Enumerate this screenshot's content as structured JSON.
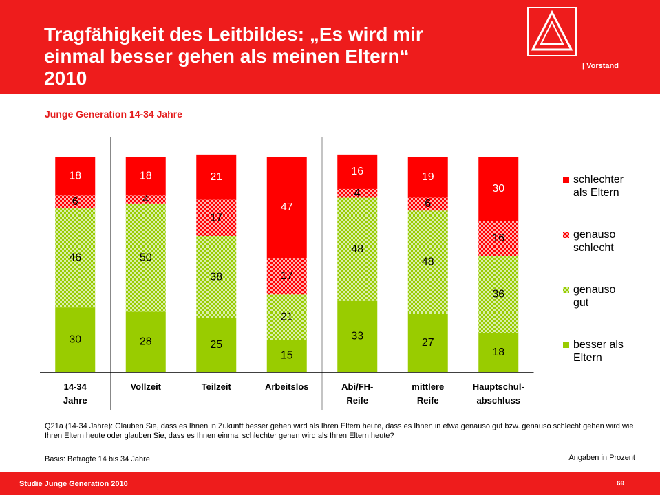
{
  "header": {
    "title": "Tragfähigkeit des Leitbildes: „Es wird mir\neinmal besser gehen als meinen Eltern“\n2010",
    "org": "| Vorstand"
  },
  "chart_data": {
    "type": "stacked_bar",
    "subtitle": "Junge Generation 14-34 Jahre",
    "categories": [
      "14-34\nJahre",
      "Vollzeit",
      "Teilzeit",
      "Arbeitslos",
      "Abi/FH-\nReife",
      "mittlere\nReife",
      "Hauptschul-\nabschluss"
    ],
    "series": [
      {
        "name": "besser als\nEltern",
        "color": "#99cc00",
        "pattern": "solid",
        "label_color": "#000000",
        "values": [
          30,
          28,
          25,
          15,
          33,
          27,
          18
        ]
      },
      {
        "name": "genauso\ngut",
        "color": "#99cc00",
        "pattern": "checker",
        "label_color": "#000000",
        "values": [
          46,
          50,
          38,
          21,
          48,
          48,
          36
        ]
      },
      {
        "name": "genauso\nschlecht",
        "color": "#ff0000",
        "pattern": "checker",
        "label_color": "#000000",
        "values": [
          6,
          4,
          17,
          17,
          4,
          6,
          16
        ]
      },
      {
        "name": "schlechter\nals Eltern",
        "color": "#ff0000",
        "pattern": "solid",
        "label_color": "#ffffff",
        "values": [
          18,
          18,
          21,
          47,
          16,
          19,
          30
        ]
      }
    ],
    "ylim": [
      0,
      100
    ],
    "separators_after": [
      0,
      3
    ]
  },
  "notes": {
    "question": "Q21a (14-34 Jahre): Glauben Sie, dass es Ihnen in Zukunft besser gehen wird als Ihren Eltern heute, dass es Ihnen in etwa genauso gut bzw. genauso schlecht gehen wird wie Ihren Eltern heute oder glauben Sie, dass es Ihnen einmal schlechter gehen wird als Ihren Eltern heute?",
    "basis": "Basis: Befragte 14 bis 34 Jahre",
    "unit": "Angaben in Prozent"
  },
  "footer": {
    "text": "Studie Junge Generation 2010",
    "page": "69"
  }
}
